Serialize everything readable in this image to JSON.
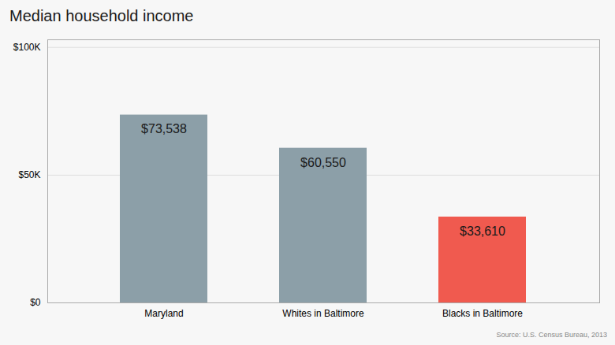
{
  "chart_data": {
    "type": "bar",
    "title": "Median household income",
    "categories": [
      "Maryland",
      "Whites in Baltimore",
      "Blacks in Baltimore"
    ],
    "values": [
      73538,
      60550,
      33610
    ],
    "value_labels": [
      "$73,538",
      "$60,550",
      "$33,610"
    ],
    "colors": [
      "#8c9fa8",
      "#8c9fa8",
      "#f05a4f"
    ],
    "ylim": [
      0,
      103000
    ],
    "yticks": [
      {
        "value": 0,
        "label": "$0"
      },
      {
        "value": 50000,
        "label": "$50K"
      },
      {
        "value": 100000,
        "label": "$100K"
      }
    ],
    "grid": true,
    "data_labels": true,
    "source": "Source: U.S. Census Bureau, 2013"
  }
}
